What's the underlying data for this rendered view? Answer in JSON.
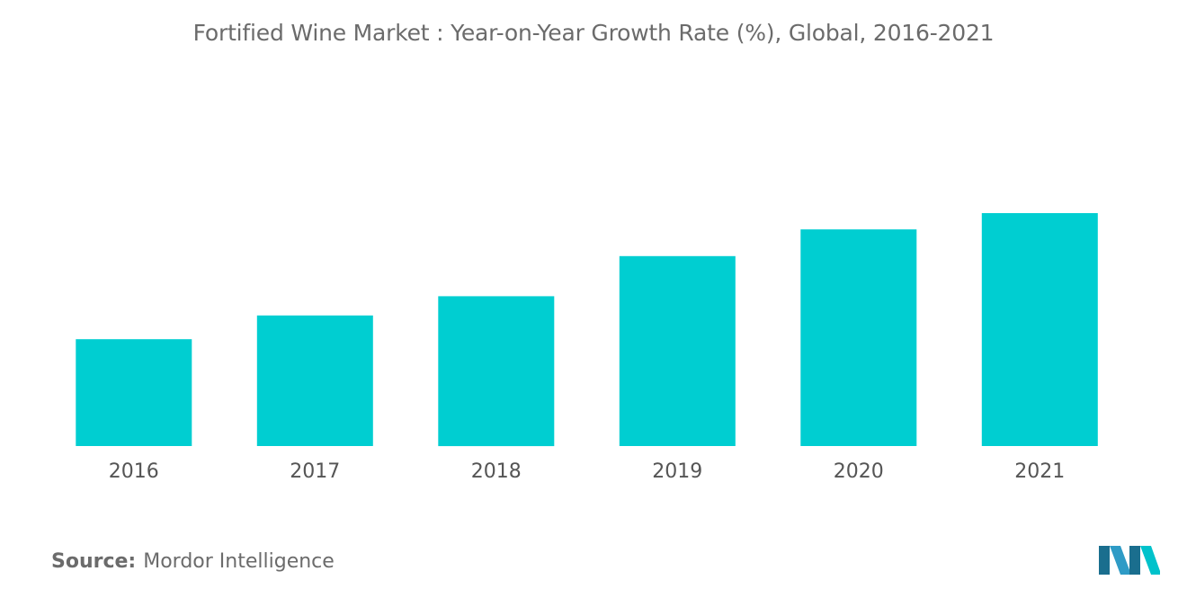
{
  "chart_data": {
    "type": "bar",
    "title": "Fortified Wine Market : Year-on-Year Growth Rate (%), Global, 2016-2021",
    "xlabel": "",
    "ylabel": "",
    "categories": [
      "2016",
      "2017",
      "2018",
      "2019",
      "2020",
      "2021"
    ],
    "values": [
      3.6,
      4.4,
      5.05,
      6.4,
      7.3,
      7.85
    ],
    "ylim": [
      0,
      10
    ],
    "grid": false,
    "legend": "none",
    "bar_color": "#00CED1"
  },
  "source": {
    "label": "Source:",
    "text": "Mordor Intelligence"
  },
  "logo": {
    "icon": "mordor-intelligence-logo",
    "colors": [
      "#2E9BC6",
      "#1A6E8E",
      "#00C2CB"
    ]
  }
}
